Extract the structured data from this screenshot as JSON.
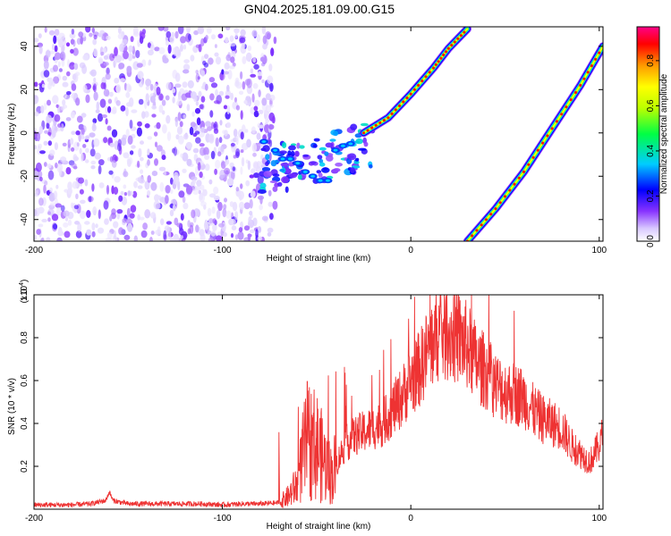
{
  "title": "GN04.2025.181.09.00.G15",
  "chart_data": [
    {
      "type": "heatmap",
      "xlabel": "Height of straight line (km)",
      "ylabel": "Frequency (Hz)",
      "xlim": [
        -200,
        102
      ],
      "ylim": [
        -50,
        49
      ],
      "xticks": [
        -200,
        -100,
        0,
        100
      ],
      "yticks": [
        -40,
        -20,
        0,
        20,
        40
      ],
      "colorbar": {
        "label": "Normalized spectral amplitude",
        "range": [
          0.0,
          0.95
        ],
        "ticks": [
          0.0,
          0.2,
          0.4,
          0.6,
          0.8
        ],
        "tick_labels": [
          "0.0",
          "0.2",
          "0.4",
          "0.6",
          "0.8"
        ]
      },
      "regions": [
        {
          "name": "noise",
          "x": [
            -200,
            -72
          ],
          "y": [
            -50,
            49
          ],
          "amplitude": 0.12
        },
        {
          "name": "scatter",
          "x": [
            -80,
            -20
          ],
          "y": [
            -30,
            5
          ],
          "amplitude": 0.25
        }
      ],
      "traces": [
        {
          "x": [
            -25,
            -12,
            0,
            12,
            20,
            30
          ],
          "y": [
            0,
            7,
            18,
            30,
            39,
            48
          ],
          "peak_amplitude": 0.9
        },
        {
          "x": [
            30,
            45,
            60,
            75,
            90,
            102
          ],
          "y": [
            -50,
            -35,
            -18,
            2,
            22,
            40
          ],
          "peak_amplitude": 0.9
        }
      ]
    },
    {
      "type": "line",
      "xlabel": "Height of straight line (km)",
      "ylabel": "SNR (10 * v/v)",
      "y_multiplier_label": "(x10",
      "y_multiplier_exp": "4",
      "y_multiplier_close": ")",
      "xlim": [
        -200,
        102
      ],
      "ylim": [
        0,
        1.0
      ],
      "xticks": [
        -200,
        -100,
        0,
        100
      ],
      "yticks": [
        0.2,
        0.4,
        0.6,
        0.8,
        1.0
      ],
      "ytick_labels": [
        "0.2",
        "0.4",
        "0.6",
        "0.8",
        "1.0"
      ],
      "series": [
        {
          "color": "#ee3333",
          "x": [
            -200,
            -190,
            -180,
            -170,
            -162,
            -160,
            -158,
            -150,
            -140,
            -130,
            -120,
            -110,
            -100,
            -90,
            -80,
            -70,
            -65,
            -60,
            -58,
            -55,
            -50,
            -45,
            -42,
            -40,
            -35,
            -30,
            -25,
            -20,
            -15,
            -10,
            -5,
            0,
            5,
            10,
            15,
            20,
            25,
            30,
            35,
            40,
            45,
            50,
            55,
            60,
            65,
            70,
            75,
            80,
            85,
            90,
            95,
            100,
            102
          ],
          "y": [
            0.02,
            0.02,
            0.02,
            0.025,
            0.04,
            0.08,
            0.04,
            0.025,
            0.025,
            0.025,
            0.025,
            0.025,
            0.02,
            0.025,
            0.025,
            0.03,
            0.06,
            0.12,
            0.22,
            0.32,
            0.3,
            0.2,
            0.16,
            0.2,
            0.3,
            0.34,
            0.36,
            0.38,
            0.4,
            0.46,
            0.52,
            0.6,
            0.66,
            0.76,
            0.82,
            0.82,
            0.8,
            0.76,
            0.68,
            0.64,
            0.58,
            0.55,
            0.54,
            0.52,
            0.46,
            0.42,
            0.4,
            0.38,
            0.3,
            0.26,
            0.22,
            0.3,
            0.35
          ]
        }
      ]
    }
  ]
}
